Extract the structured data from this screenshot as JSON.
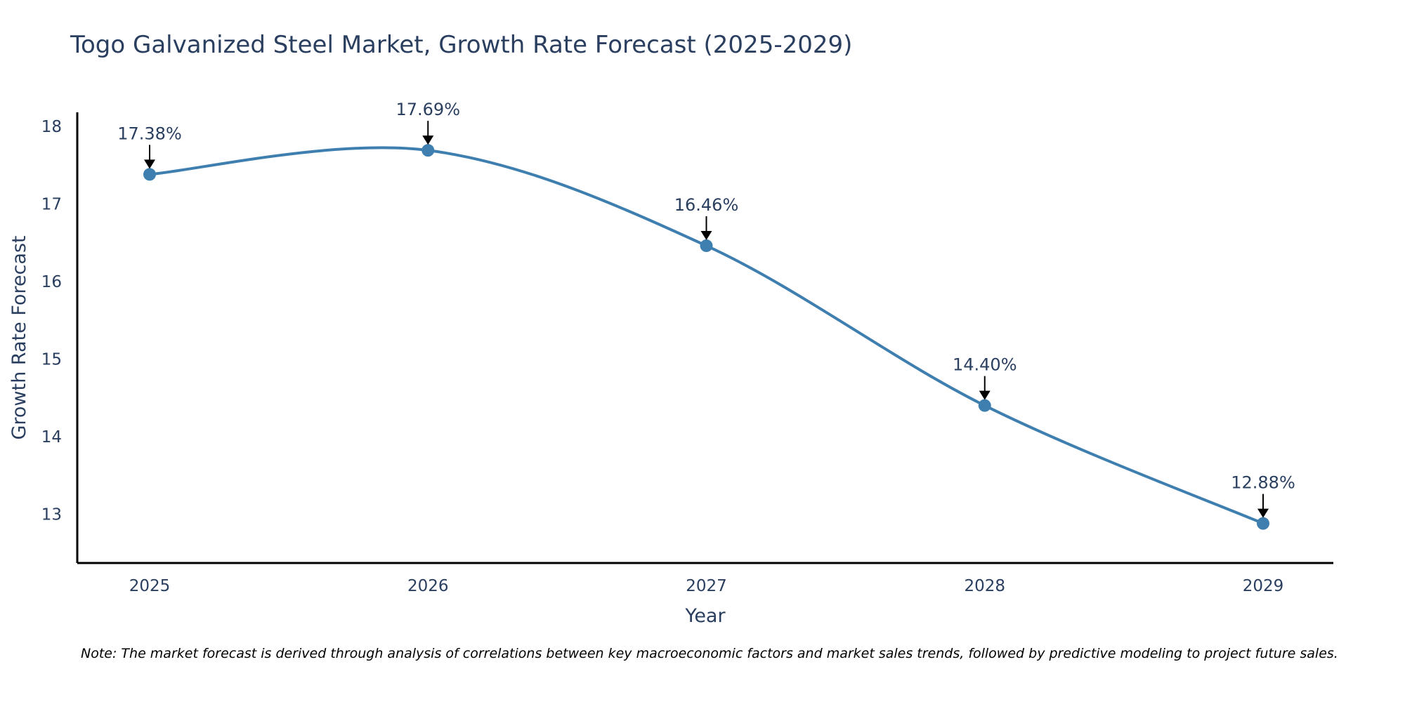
{
  "chart_data": {
    "type": "line",
    "title": "Togo Galvanized Steel Market, Growth Rate Forecast (2025-2029)",
    "xlabel": "Year",
    "ylabel": "Growth Rate Forecast",
    "categories": [
      "2025",
      "2026",
      "2027",
      "2028",
      "2029"
    ],
    "series": [
      {
        "name": "Growth Rate Forecast",
        "values": [
          17.38,
          17.69,
          16.46,
          14.4,
          12.88
        ]
      }
    ],
    "data_labels": [
      "17.38%",
      "17.69%",
      "16.46%",
      "14.40%",
      "12.88%"
    ],
    "yticks": [
      13,
      14,
      15,
      16,
      17,
      18
    ],
    "ylim": [
      12.37,
      18.18
    ],
    "grid": false,
    "line_color": "#3f7fb0",
    "note": "Note: The market forecast is derived through analysis of correlations between key macroeconomic factors and market sales trends, followed by predictive modeling to project future sales."
  }
}
